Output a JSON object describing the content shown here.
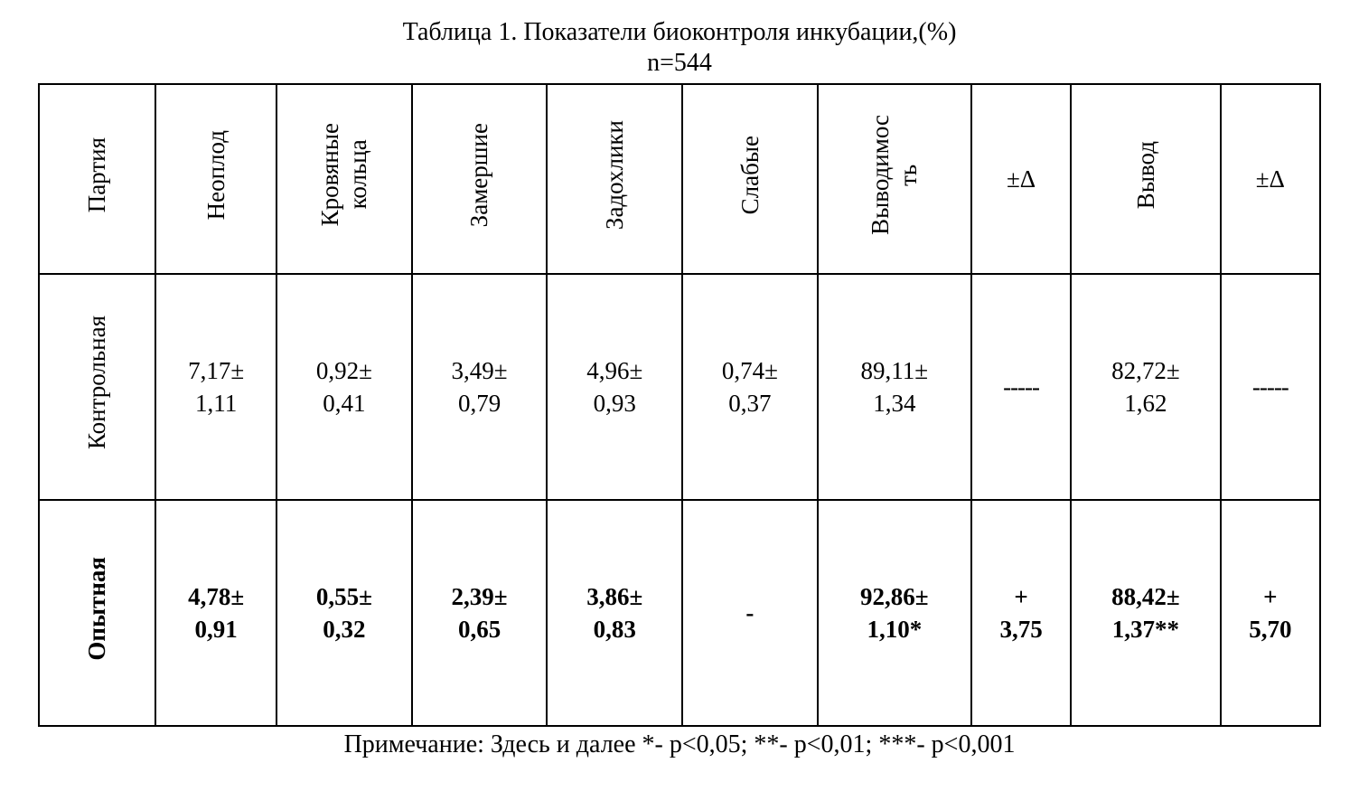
{
  "title": "Таблица 1. Показатели биоконтроля инкубации,(%)",
  "subtitle": "n=544",
  "footnote": "Примечание: Здесь и далее *- р<0,05; **- р<0,01; ***- р<0,001",
  "headers": {
    "h0": "Партия",
    "h1": "Неоплод",
    "h2_line1": "Кровяные",
    "h2_line2": "кольца",
    "h3": "Замершие",
    "h4": "Задохлики",
    "h5": "Слабые",
    "h6_line1": "Выводимос",
    "h6_line2": "ть",
    "h7": "±Δ",
    "h8": "Вывод",
    "h9": "±Δ"
  },
  "rows": {
    "control": {
      "label": "Контрольная",
      "c1_l1": "7,17±",
      "c1_l2": "1,11",
      "c2_l1": "0,92±",
      "c2_l2": "0,41",
      "c3_l1": "3,49±",
      "c3_l2": "0,79",
      "c4_l1": "4,96±",
      "c4_l2": "0,93",
      "c5_l1": "0,74±",
      "c5_l2": "0,37",
      "c6_l1": "89,11±",
      "c6_l2": "1,34",
      "c7": "-----",
      "c8_l1": "82,72±",
      "c8_l2": "1,62",
      "c9": "-----"
    },
    "experimental": {
      "label": "Опытная",
      "c1_l1": "4,78±",
      "c1_l2": "0,91",
      "c2_l1": "0,55±",
      "c2_l2": "0,32",
      "c3_l1": "2,39±",
      "c3_l2": "0,65",
      "c4_l1": "3,86±",
      "c4_l2": "0,83",
      "c5": "-",
      "c6_l1": "92,86±",
      "c6_l2": "1,10*",
      "c7_l1": "+",
      "c7_l2": "3,75",
      "c8_l1": "88,42±",
      "c8_l2": "1,37**",
      "c9_l1": "+",
      "c9_l2": "5,70"
    }
  },
  "style": {
    "text_color": "#000000",
    "background_color": "#ffffff",
    "border_color": "#000000",
    "font_family": "Times New Roman",
    "title_fontsize": 28,
    "cell_fontsize": 27,
    "border_width": 2,
    "table_width_pct": 97,
    "header_row_height": 210,
    "data_row_height": 250,
    "column_widths_pct": [
      8.2,
      8.5,
      9.5,
      9.5,
      9.5,
      9.5,
      10.8,
      7,
      10.5,
      7
    ]
  }
}
